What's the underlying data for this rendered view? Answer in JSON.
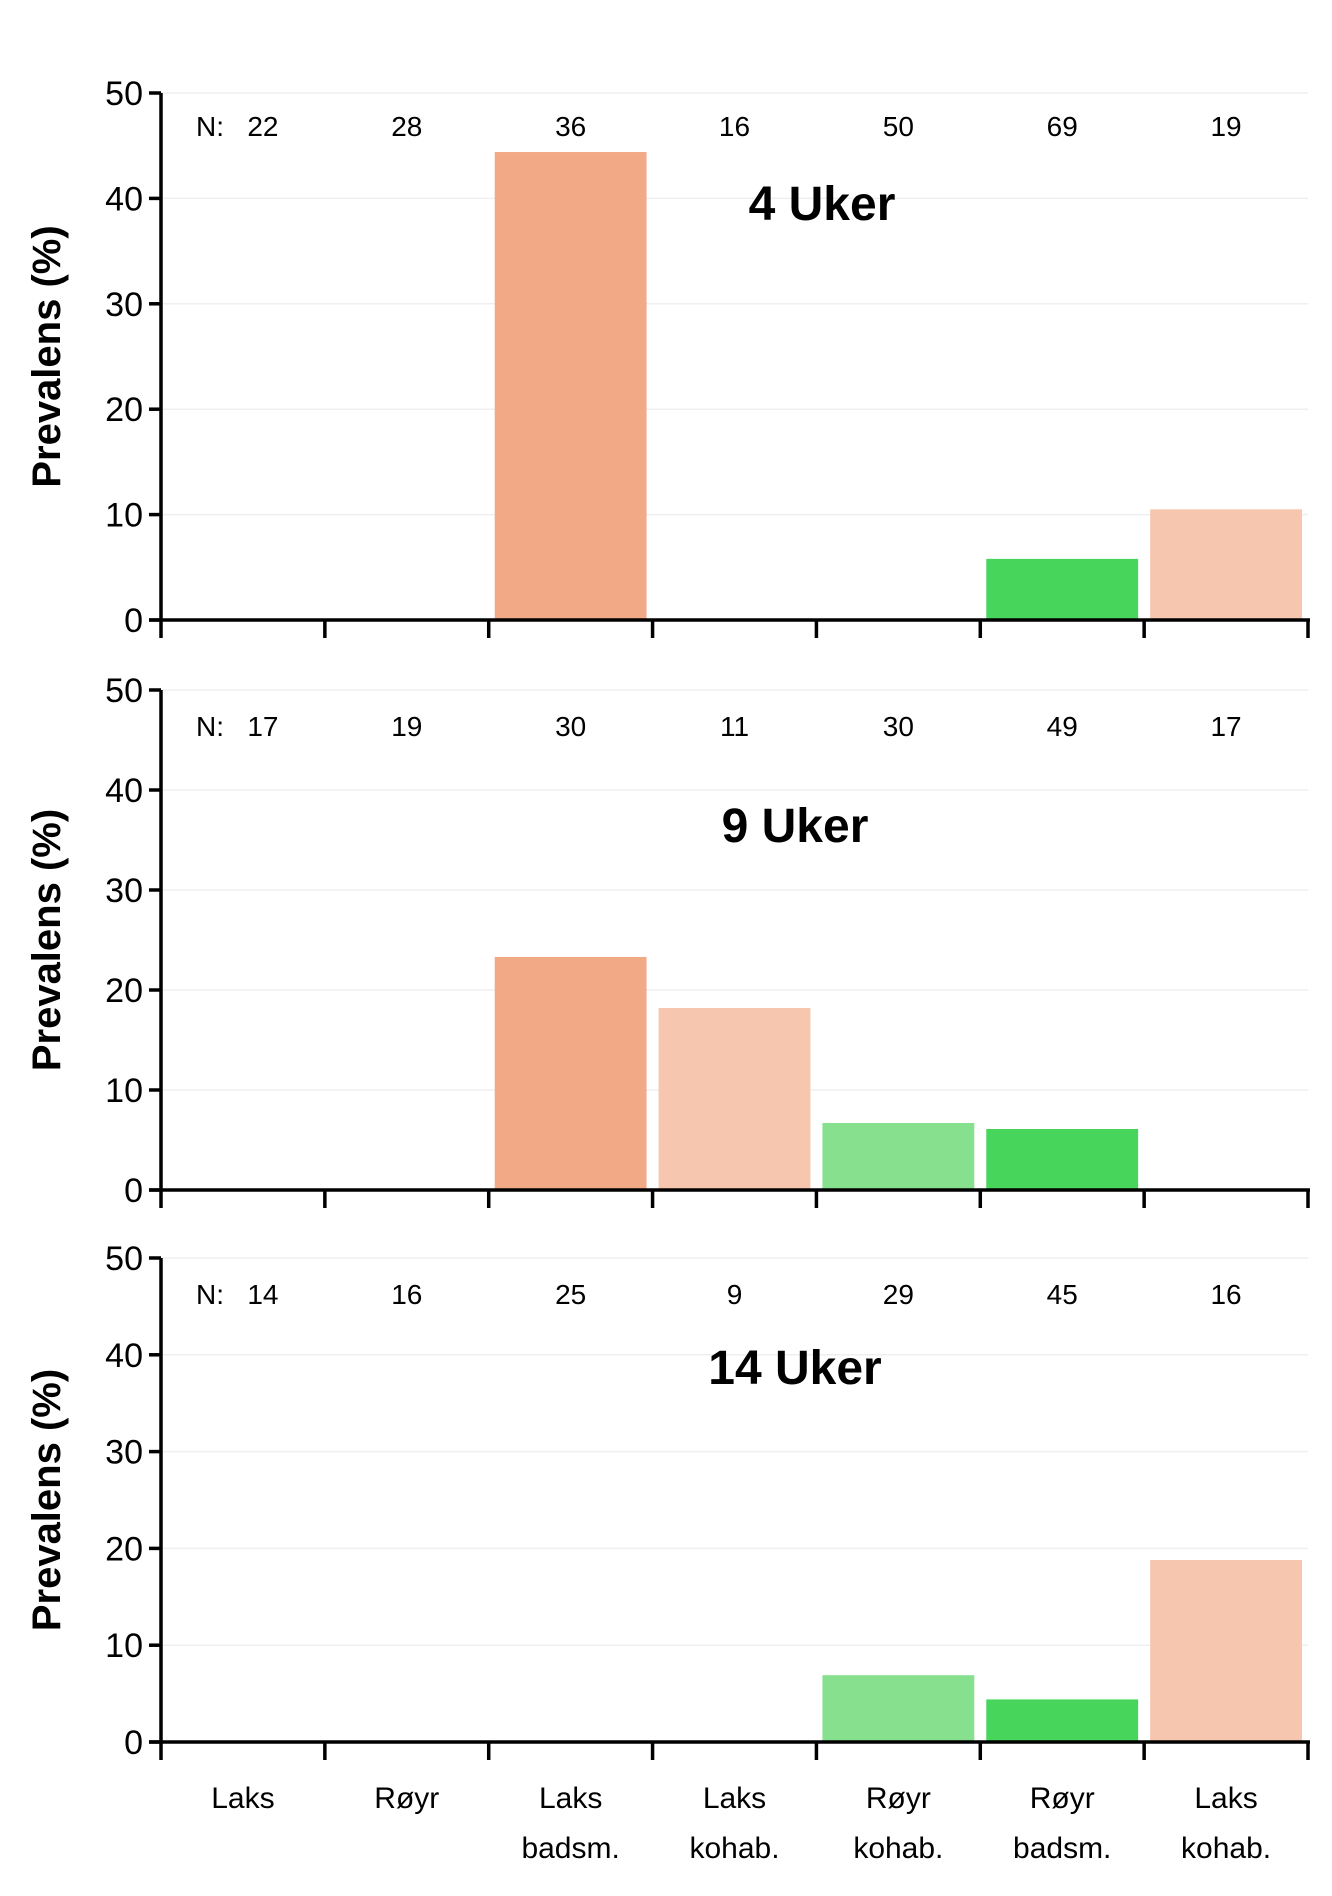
{
  "chart_data": [
    {
      "type": "bar",
      "title": "4 Uker",
      "ylabel": "Prevalens (%)",
      "ylim": [
        0,
        50
      ],
      "yticks": [
        0,
        10,
        20,
        30,
        40,
        50
      ],
      "categories": [
        [
          "Laks"
        ],
        [
          "Røyr"
        ],
        [
          "Laks",
          "badsm."
        ],
        [
          "Laks",
          "kohab."
        ],
        [
          "Røyr",
          "kohab."
        ],
        [
          "Røyr",
          "badsm."
        ],
        [
          "Laks",
          "kohab."
        ]
      ],
      "n_prefix": "N:",
      "n": [
        "22",
        "28",
        "36",
        "16",
        "50",
        "69",
        "19"
      ],
      "values": [
        0,
        0,
        44.4,
        0,
        0,
        5.8,
        10.5
      ],
      "colors": [
        "#F2AA86",
        "#F2AA86",
        "#F2AA86",
        "#F6C6AE",
        "#86E08E",
        "#47D55B",
        "#F6C6AE"
      ]
    },
    {
      "type": "bar",
      "title": "9 Uker",
      "ylabel": "Prevalens (%)",
      "ylim": [
        0,
        50
      ],
      "yticks": [
        0,
        10,
        20,
        30,
        40,
        50
      ],
      "categories": [
        [
          "Laks"
        ],
        [
          "Røyr"
        ],
        [
          "Laks",
          "badsm."
        ],
        [
          "Laks",
          "kohab."
        ],
        [
          "Røyr",
          "kohab."
        ],
        [
          "Røyr",
          "badsm."
        ],
        [
          "Laks",
          "kohab."
        ]
      ],
      "n_prefix": "N:",
      "n": [
        "17",
        "19",
        "30",
        "11",
        "30",
        "49",
        "17"
      ],
      "values": [
        0,
        0,
        23.3,
        18.2,
        6.7,
        6.1,
        0
      ],
      "colors": [
        "#F2AA86",
        "#F2AA86",
        "#F2AA86",
        "#F6C6AE",
        "#86E08E",
        "#47D55B",
        "#F6C6AE"
      ]
    },
    {
      "type": "bar",
      "title": "14 Uker",
      "ylabel": "Prevalens (%)",
      "ylim": [
        0,
        50
      ],
      "yticks": [
        0,
        10,
        20,
        30,
        40,
        50
      ],
      "categories": [
        [
          "Laks"
        ],
        [
          "Røyr"
        ],
        [
          "Laks",
          "badsm."
        ],
        [
          "Laks",
          "kohab."
        ],
        [
          "Røyr",
          "kohab."
        ],
        [
          "Røyr",
          "badsm."
        ],
        [
          "Laks",
          "kohab."
        ]
      ],
      "n_prefix": "N:",
      "n": [
        "14",
        "16",
        "25",
        "9",
        "29",
        "45",
        "16"
      ],
      "values": [
        0,
        0,
        0,
        0,
        6.9,
        4.4,
        18.8
      ],
      "colors": [
        "#F2AA86",
        "#F2AA86",
        "#F2AA86",
        "#F6C6AE",
        "#86E08E",
        "#47D55B",
        "#F6C6AE"
      ]
    }
  ]
}
